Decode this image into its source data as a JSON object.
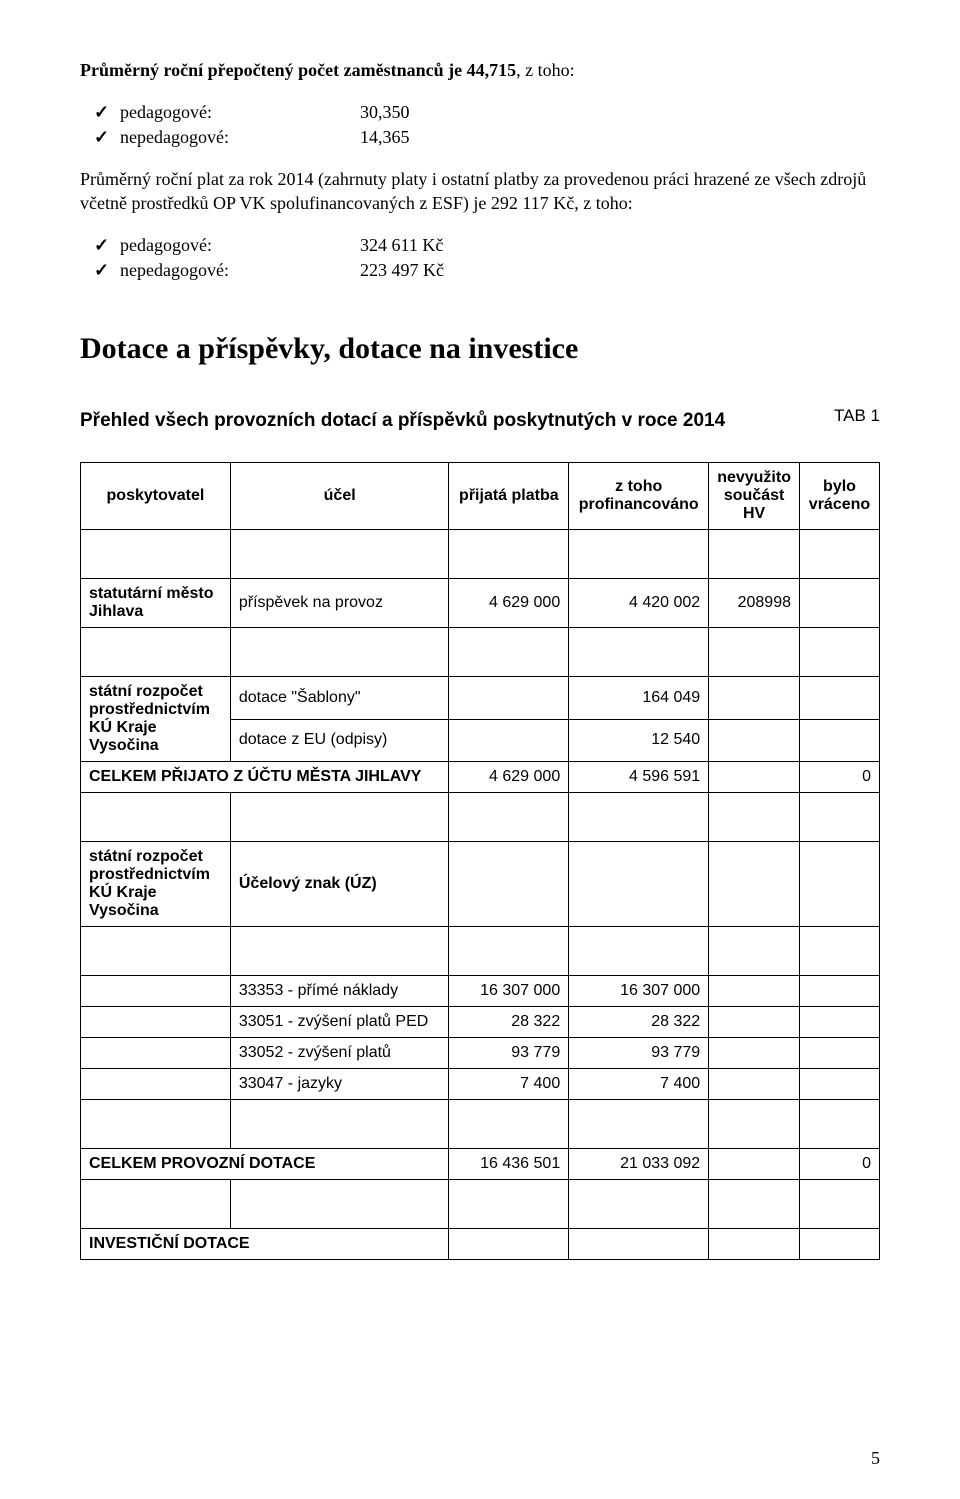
{
  "intro": {
    "line1_prefix": "Průměrný roční přepočtený počet zaměstnanců je 44,715",
    "line1_suffix": ", z toho:",
    "list1": [
      {
        "label": "pedagogové:",
        "value": "30,350"
      },
      {
        "label": "nepedagogové:",
        "value": "14,365"
      }
    ],
    "line2": "Průměrný roční plat za rok 2014 (zahrnuty platy i ostatní platby za provedenou práci hrazené ze všech zdrojů včetně prostředků OP VK spolufinancovaných z ESF) je 292 117 Kč, z toho:",
    "list2": [
      {
        "label": "pedagogové:",
        "value": "324 611 Kč"
      },
      {
        "label": "nepedagogové:",
        "value": "223 497 Kč"
      }
    ]
  },
  "heading": "Dotace a příspěvky, dotace na investice",
  "subheading": "Přehled všech provozních dotací a příspěvků poskytnutých v roce 2014",
  "tab_label": "TAB 1",
  "table": {
    "headers": {
      "provider": "poskytovatel",
      "purpose": "účel",
      "received": "přijatá platba",
      "financed": "z toho profinancováno",
      "unused": "nevyužito součást HV",
      "returned": "bylo vráceno"
    },
    "rows": [
      {
        "provider": "statutární město Jihlava",
        "purpose": "příspěvek na provoz",
        "received": "4 629 000",
        "financed": "4 420 002",
        "unused": "208998",
        "returned": ""
      }
    ],
    "state_block": {
      "provider": "státní rozpočet prostřednictvím KÚ Kraje Vysočina",
      "rows": [
        {
          "purpose": "dotace \"Šablony\"",
          "received": "",
          "financed": "164 049",
          "unused": "",
          "returned": ""
        },
        {
          "purpose": "dotace z EU (odpisy)",
          "received": "",
          "financed": "12 540",
          "unused": "",
          "returned": ""
        }
      ]
    },
    "city_total": {
      "label": "CELKEM PŘIJATO Z ÚČTU MĚSTA JIHLAVY",
      "received": "4 629 000",
      "financed": "4 596 591",
      "unused": "",
      "returned": "0"
    },
    "uz_block": {
      "provider": "státní rozpočet prostřednictvím KÚ Kraje Vysočina",
      "purpose": "Účelový znak (ÚZ)",
      "rows": [
        {
          "purpose": "33353 - přímé náklady",
          "received": "16 307 000",
          "financed": "16 307 000"
        },
        {
          "purpose": "33051 - zvýšení platů PED",
          "received": "28 322",
          "financed": "28 322"
        },
        {
          "purpose": "33052 - zvýšení platů",
          "received": "93 779",
          "financed": "93 779"
        },
        {
          "purpose": "33047 - jazyky",
          "received": "7 400",
          "financed": "7 400"
        }
      ]
    },
    "prov_total": {
      "label": "CELKEM PROVOZNÍ DOTACE",
      "received": "16 436 501",
      "financed": "21 033 092",
      "unused": "",
      "returned": "0"
    },
    "inv_label": "INVESTIČNÍ DOTACE"
  },
  "page_number": "5"
}
